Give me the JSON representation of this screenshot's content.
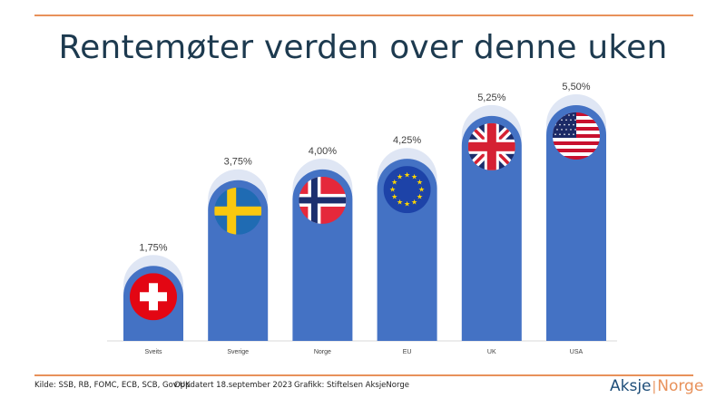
{
  "page_title": "Rentemøter verden over denne uken",
  "footer": {
    "source": "Kilde: SSB, RB, FOMC, ECB, SCB, Gov.UK",
    "updated": "Oppdatert 18.september 2023",
    "graphics": "Grafikk: Stiftelsen AksjeNorge"
  },
  "logo": {
    "part1": "Aksje",
    "separator": "|",
    "part2": "Norge"
  },
  "colors": {
    "bar": "#4472c4",
    "ghost": "#dfe6f4",
    "accent": "#e8915a",
    "title": "#1d3a4f"
  },
  "chart_data": {
    "type": "bar",
    "title": "Rentemøter verden over denne uken",
    "categories": [
      "Sveits",
      "Sverige",
      "Norge",
      "EU",
      "UK",
      "USA"
    ],
    "values": [
      1.75,
      3.75,
      4.0,
      4.25,
      5.25,
      5.5
    ],
    "value_labels": [
      "1,75%",
      "3,75%",
      "4,00%",
      "4,25%",
      "5,25%",
      "5,50%"
    ],
    "flag_icons": [
      "switzerland-flag-icon",
      "sweden-flag-icon",
      "norway-flag-icon",
      "eu-flag-icon",
      "uk-flag-icon",
      "usa-flag-icon"
    ],
    "ylim": [
      0,
      5.5
    ],
    "xlabel": "",
    "ylabel": "",
    "grid": false,
    "legend": "none"
  }
}
